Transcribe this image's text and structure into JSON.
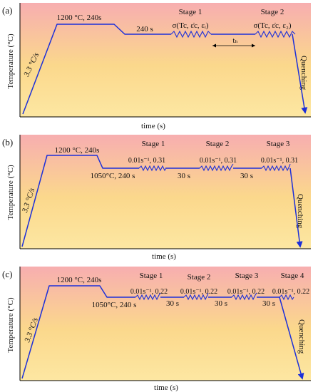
{
  "panels": [
    {
      "id": "(a)",
      "ylabel": "Temperature (°C)",
      "xlabel": "time (s)",
      "rate": "3.3 °C/s",
      "soak": "1200 °C, 240s",
      "hold": "240 s",
      "quench": "Quenching",
      "interval": "tₕ",
      "stages": [
        {
          "name": "Stage 1",
          "cond": "σ(Tc, ε̇c, εᵢ)"
        },
        {
          "name": "Stage 2",
          "cond": "σ(Tc, ε̇c, ε₂)"
        }
      ],
      "gaps": []
    },
    {
      "id": "(b)",
      "ylabel": "Temperature (°C)",
      "xlabel": "time (s)",
      "rate": "3.3 °C/s",
      "soak": "1200 °C, 240s",
      "hold": "1050°C, 240 s",
      "quench": "Quenching",
      "stages": [
        {
          "name": "Stage 1",
          "cond": "0.01s⁻¹, 0.31"
        },
        {
          "name": "Stage 2",
          "cond": "0.01s⁻¹, 0.31"
        },
        {
          "name": "Stage 3",
          "cond": "0.01s⁻¹, 0.31"
        }
      ],
      "gaps": [
        "30 s",
        "30 s"
      ]
    },
    {
      "id": "(c)",
      "ylabel": "Temperature (°C)",
      "xlabel": "time (s)",
      "rate": "3.3 °C/s",
      "soak": "1200 °C, 240s",
      "hold": "1050°C, 240 s",
      "quench": "Quenching",
      "stages": [
        {
          "name": "Stage 1",
          "cond": "0.01s⁻¹, 0.22"
        },
        {
          "name": "Stage 2",
          "cond": "0.01s⁻¹, 0.22"
        },
        {
          "name": "Stage 3",
          "cond": "0.01s⁻¹, 0.22"
        },
        {
          "name": "Stage 4",
          "cond": "0.01s⁻¹, 0.22"
        }
      ],
      "gaps": [
        "30 s",
        "30 s",
        "30 s"
      ]
    }
  ],
  "colors": {
    "line": "#1c2fd9",
    "bg_top": "#f8b4ae",
    "bg_mid": "#fbdc86",
    "bg_bottom": "#fde9a0"
  }
}
